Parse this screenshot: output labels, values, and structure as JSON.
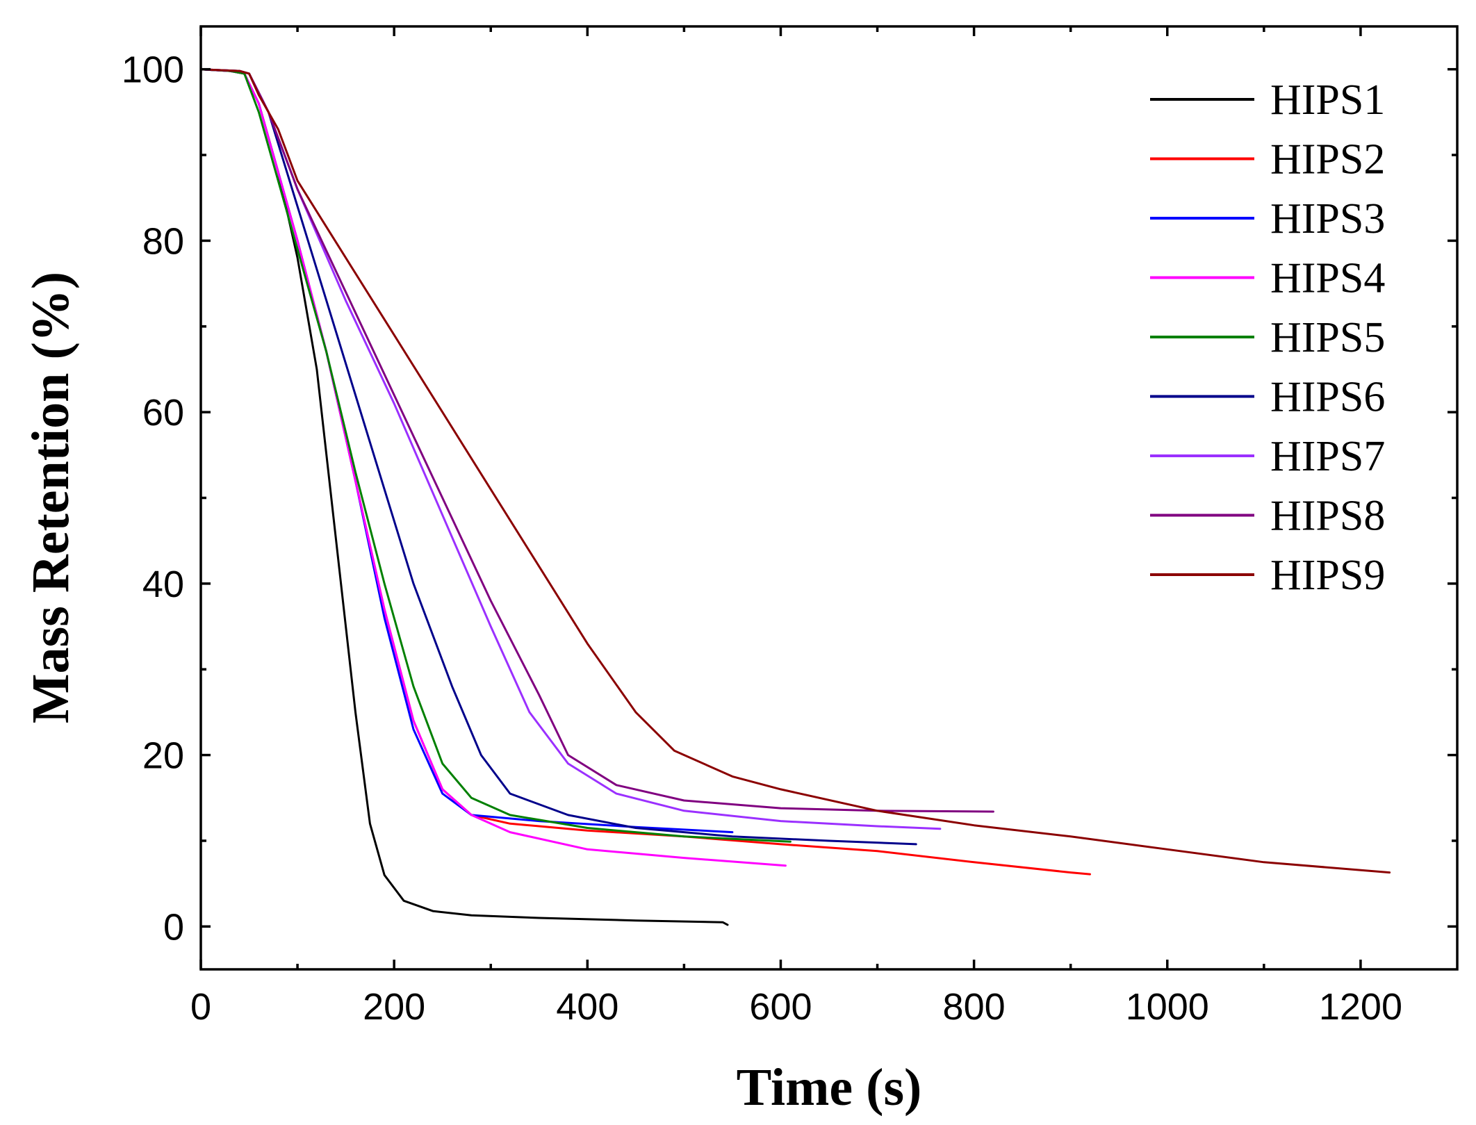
{
  "chart_data": {
    "type": "line",
    "title": "",
    "xlabel": "Time (s)",
    "ylabel": "Mass Retention (%)",
    "xlim": [
      0,
      1300
    ],
    "ylim": [
      -5,
      105
    ],
    "x_ticks": [
      0,
      200,
      400,
      600,
      800,
      1000,
      1200
    ],
    "y_ticks": [
      0,
      20,
      40,
      60,
      80,
      100
    ],
    "x_tick_labels": [
      "0",
      "200",
      "400",
      "600",
      "800",
      "1000",
      "1200"
    ],
    "y_tick_labels": [
      "0",
      "20",
      "40",
      "60",
      "80",
      "100"
    ],
    "x_minor_step": 100,
    "y_minor_step": 10,
    "legend_position": "top-right",
    "series": [
      {
        "name": "HIPS1",
        "color": "#000000",
        "points": [
          [
            0,
            100
          ],
          [
            30,
            99.8
          ],
          [
            45,
            99.5
          ],
          [
            60,
            96
          ],
          [
            80,
            88
          ],
          [
            100,
            78
          ],
          [
            120,
            65
          ],
          [
            140,
            45
          ],
          [
            160,
            25
          ],
          [
            175,
            12
          ],
          [
            190,
            6
          ],
          [
            210,
            3
          ],
          [
            240,
            1.8
          ],
          [
            280,
            1.3
          ],
          [
            350,
            1
          ],
          [
            450,
            0.7
          ],
          [
            540,
            0.5
          ],
          [
            545,
            0.2
          ]
        ]
      },
      {
        "name": "HIPS2",
        "color": "#ff0000",
        "points": [
          [
            0,
            100
          ],
          [
            30,
            99.8
          ],
          [
            45,
            99.5
          ],
          [
            60,
            96
          ],
          [
            80,
            88
          ],
          [
            100,
            80
          ],
          [
            130,
            67
          ],
          [
            160,
            52
          ],
          [
            190,
            37
          ],
          [
            220,
            24
          ],
          [
            250,
            16
          ],
          [
            280,
            13
          ],
          [
            320,
            12
          ],
          [
            400,
            11.2
          ],
          [
            500,
            10.5
          ],
          [
            600,
            9.6
          ],
          [
            700,
            8.8
          ],
          [
            800,
            7.5
          ],
          [
            900,
            6.3
          ],
          [
            920,
            6.1
          ]
        ]
      },
      {
        "name": "HIPS3",
        "color": "#0000ff",
        "points": [
          [
            0,
            100
          ],
          [
            30,
            99.8
          ],
          [
            45,
            99.5
          ],
          [
            60,
            96
          ],
          [
            80,
            88
          ],
          [
            100,
            80
          ],
          [
            130,
            67
          ],
          [
            160,
            52
          ],
          [
            190,
            36
          ],
          [
            220,
            23
          ],
          [
            250,
            15.5
          ],
          [
            280,
            13
          ],
          [
            350,
            12.3
          ],
          [
            450,
            11.6
          ],
          [
            550,
            11
          ]
        ]
      },
      {
        "name": "HIPS4",
        "color": "#ff00ff",
        "points": [
          [
            0,
            100
          ],
          [
            30,
            99.8
          ],
          [
            45,
            99.5
          ],
          [
            60,
            96
          ],
          [
            80,
            88
          ],
          [
            100,
            80
          ],
          [
            130,
            67
          ],
          [
            160,
            52
          ],
          [
            190,
            37
          ],
          [
            220,
            24
          ],
          [
            250,
            16
          ],
          [
            280,
            13
          ],
          [
            320,
            11
          ],
          [
            400,
            9
          ],
          [
            500,
            8
          ],
          [
            605,
            7.1
          ]
        ]
      },
      {
        "name": "HIPS5",
        "color": "#008000",
        "points": [
          [
            0,
            100
          ],
          [
            30,
            99.8
          ],
          [
            45,
            99.5
          ],
          [
            60,
            95
          ],
          [
            80,
            87
          ],
          [
            100,
            79
          ],
          [
            130,
            67
          ],
          [
            160,
            53
          ],
          [
            190,
            40
          ],
          [
            220,
            28
          ],
          [
            250,
            19
          ],
          [
            280,
            15
          ],
          [
            320,
            13
          ],
          [
            400,
            11.5
          ],
          [
            500,
            10.5
          ],
          [
            610,
            9.9
          ]
        ]
      },
      {
        "name": "HIPS6",
        "color": "#00008b",
        "points": [
          [
            0,
            100
          ],
          [
            40,
            99.8
          ],
          [
            50,
            99.5
          ],
          [
            70,
            95
          ],
          [
            100,
            84
          ],
          [
            130,
            73
          ],
          [
            160,
            62
          ],
          [
            190,
            51
          ],
          [
            220,
            40
          ],
          [
            260,
            28
          ],
          [
            290,
            20
          ],
          [
            320,
            15.5
          ],
          [
            380,
            13
          ],
          [
            450,
            11.5
          ],
          [
            550,
            10.5
          ],
          [
            650,
            10
          ],
          [
            740,
            9.6
          ]
        ]
      },
      {
        "name": "HIPS7",
        "color": "#9b30ff",
        "points": [
          [
            0,
            100
          ],
          [
            40,
            99.8
          ],
          [
            50,
            99.5
          ],
          [
            70,
            95
          ],
          [
            100,
            86
          ],
          [
            150,
            73
          ],
          [
            200,
            61
          ],
          [
            250,
            48
          ],
          [
            300,
            35
          ],
          [
            340,
            25
          ],
          [
            380,
            19
          ],
          [
            430,
            15.5
          ],
          [
            500,
            13.5
          ],
          [
            600,
            12.3
          ],
          [
            700,
            11.7
          ],
          [
            765,
            11.4
          ]
        ]
      },
      {
        "name": "HIPS8",
        "color": "#800080",
        "points": [
          [
            0,
            100
          ],
          [
            40,
            99.8
          ],
          [
            50,
            99.5
          ],
          [
            70,
            95
          ],
          [
            100,
            86
          ],
          [
            150,
            74
          ],
          [
            200,
            62
          ],
          [
            250,
            50
          ],
          [
            300,
            38
          ],
          [
            350,
            27
          ],
          [
            380,
            20
          ],
          [
            430,
            16.5
          ],
          [
            500,
            14.7
          ],
          [
            600,
            13.8
          ],
          [
            700,
            13.5
          ],
          [
            820,
            13.4
          ]
        ]
      },
      {
        "name": "HIPS9",
        "color": "#8b0000",
        "points": [
          [
            0,
            100
          ],
          [
            40,
            99.8
          ],
          [
            50,
            99.5
          ],
          [
            60,
            97
          ],
          [
            80,
            93
          ],
          [
            100,
            87
          ],
          [
            150,
            78
          ],
          [
            200,
            69
          ],
          [
            250,
            60
          ],
          [
            300,
            51
          ],
          [
            350,
            42
          ],
          [
            400,
            33
          ],
          [
            450,
            25
          ],
          [
            490,
            20.5
          ],
          [
            550,
            17.5
          ],
          [
            600,
            16
          ],
          [
            700,
            13.5
          ],
          [
            800,
            11.8
          ],
          [
            900,
            10.5
          ],
          [
            1000,
            9
          ],
          [
            1100,
            7.5
          ],
          [
            1230,
            6.3
          ]
        ]
      }
    ]
  }
}
